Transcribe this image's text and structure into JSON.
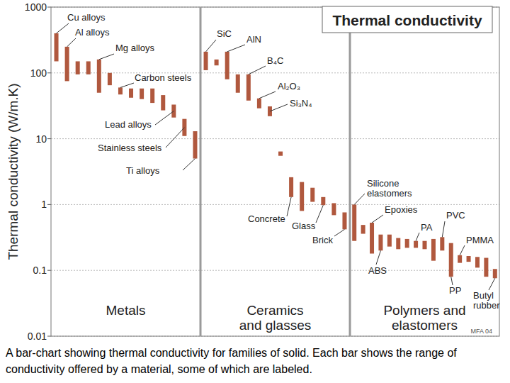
{
  "chart_data": {
    "type": "floating_bar",
    "title": "Thermal conductivity",
    "y_label": "Thermal conductivity (W/m.K)",
    "caption": "A bar-chart showing thermal conductivity for families of solid. Each bar shows the range of conductivity offered by a material, some of which are labeled.",
    "credit": "MFA 04",
    "log": "y",
    "grid": true,
    "ylim": [
      0.01,
      1000
    ],
    "yticks": [
      0.01,
      0.1,
      1,
      10,
      100,
      1000
    ],
    "categories": [
      "Cu alloys",
      "Al alloys",
      null,
      null,
      "Mg alloys",
      null,
      "Carbon steels",
      null,
      null,
      null,
      null,
      "Lead alloys",
      "Stainless steels",
      "Ti alloys",
      "SiC",
      null,
      "AlN",
      null,
      "B₄C",
      "Al₂O₃",
      "Si₃N₄",
      null,
      "Concrete",
      null,
      null,
      "Glass",
      null,
      "Brick",
      "Silicone\nelastomers",
      null,
      "Epoxies",
      "ABS",
      null,
      null,
      null,
      "PA",
      null,
      null,
      "PVC",
      "PP",
      "PMMA",
      null,
      null,
      null,
      "Butyl\nrubber"
    ],
    "series": [
      {
        "name": "Metals",
        "color": "#b0583e",
        "values": [
          [
            150,
            400
          ],
          [
            75,
            250
          ],
          [
            95,
            150
          ],
          [
            95,
            150
          ],
          [
            50,
            160
          ],
          [
            65,
            100
          ],
          [
            47,
            60
          ],
          [
            42,
            58
          ],
          [
            40,
            58
          ],
          [
            35,
            58
          ],
          [
            27,
            46
          ],
          [
            21,
            33
          ],
          [
            11,
            20
          ],
          [
            5,
            13
          ],
          null,
          null,
          null,
          null,
          null,
          null,
          null,
          null,
          null,
          null,
          null,
          null,
          null,
          null,
          null,
          null,
          null,
          null,
          null,
          null,
          null,
          null,
          null,
          null,
          null,
          null,
          null,
          null,
          null,
          null,
          null
        ]
      },
      {
        "name": "Ceramics\nand glasses",
        "color": "#b0583e",
        "values": [
          null,
          null,
          null,
          null,
          null,
          null,
          null,
          null,
          null,
          null,
          null,
          null,
          null,
          null,
          [
            110,
            210
          ],
          [
            130,
            160
          ],
          [
            80,
            210
          ],
          [
            50,
            95
          ],
          [
            38,
            95
          ],
          [
            29,
            41
          ],
          [
            22,
            31
          ],
          [
            5.5,
            6.4
          ],
          [
            1.3,
            2.6
          ],
          [
            0.8,
            2.2
          ],
          [
            1.1,
            1.8
          ],
          [
            0.98,
            1.3
          ],
          [
            0.69,
            1.05
          ],
          [
            0.42,
            0.76
          ],
          null,
          null,
          null,
          null,
          null,
          null,
          null,
          null,
          null,
          null,
          null,
          null,
          null,
          null,
          null,
          null,
          null
        ]
      },
      {
        "name": "Polymers and\nelastomers",
        "color": "#b0583e",
        "values": [
          null,
          null,
          null,
          null,
          null,
          null,
          null,
          null,
          null,
          null,
          null,
          null,
          null,
          null,
          null,
          null,
          null,
          null,
          null,
          null,
          null,
          null,
          null,
          null,
          null,
          null,
          null,
          null,
          [
            0.28,
            1.0
          ],
          [
            0.36,
            0.49
          ],
          [
            0.18,
            0.53
          ],
          [
            0.2,
            0.35
          ],
          [
            0.23,
            0.35
          ],
          [
            0.21,
            0.31
          ],
          [
            0.22,
            0.3
          ],
          [
            0.22,
            0.28
          ],
          [
            0.21,
            0.28
          ],
          [
            0.14,
            0.3
          ],
          [
            0.2,
            0.32
          ],
          [
            0.08,
            0.26
          ],
          [
            0.13,
            0.17
          ],
          [
            0.135,
            0.165
          ],
          [
            0.11,
            0.16
          ],
          [
            0.08,
            0.155
          ],
          [
            0.076,
            0.105
          ]
        ]
      }
    ]
  }
}
